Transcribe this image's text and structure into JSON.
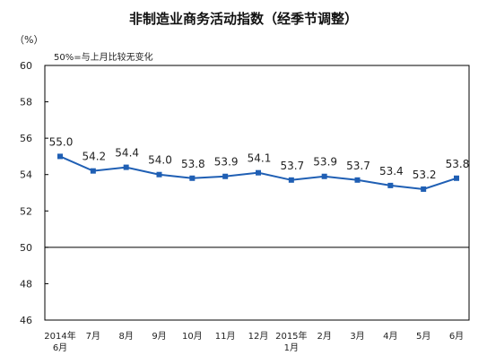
{
  "chart_data": {
    "type": "line",
    "title": "非制造业商务活动指数（经季节调整）",
    "unit_label": "（%）",
    "annotation": "50%=与上月比较无变化",
    "categories": [
      [
        "2014年",
        "6月"
      ],
      [
        "7月"
      ],
      [
        "8月"
      ],
      [
        "9月"
      ],
      [
        "10月"
      ],
      [
        "11月"
      ],
      [
        "12月"
      ],
      [
        "2015年",
        "1月"
      ],
      [
        "2月"
      ],
      [
        "3月"
      ],
      [
        "4月"
      ],
      [
        "5月"
      ],
      [
        "6月"
      ]
    ],
    "values": [
      55.0,
      54.2,
      54.4,
      54.0,
      53.8,
      53.9,
      54.1,
      53.7,
      53.9,
      53.7,
      53.4,
      53.2,
      53.8
    ],
    "data_labels": [
      "55.0",
      "54.2",
      "54.4",
      "54.0",
      "53.8",
      "53.9",
      "54.1",
      "53.7",
      "53.9",
      "53.7",
      "53.4",
      "53.2",
      "53.8"
    ],
    "yticks": [
      46,
      48,
      50,
      52,
      54,
      56,
      58,
      60
    ],
    "ytick_labels": [
      "46",
      "48",
      "50",
      "52",
      "54",
      "56",
      "58",
      "60"
    ],
    "ylim": [
      46,
      60
    ],
    "baseline": 50,
    "colors": {
      "line": "#1f5fb4",
      "marker": "#1f5fb4",
      "axis": "#000000",
      "text": "#222222"
    }
  }
}
